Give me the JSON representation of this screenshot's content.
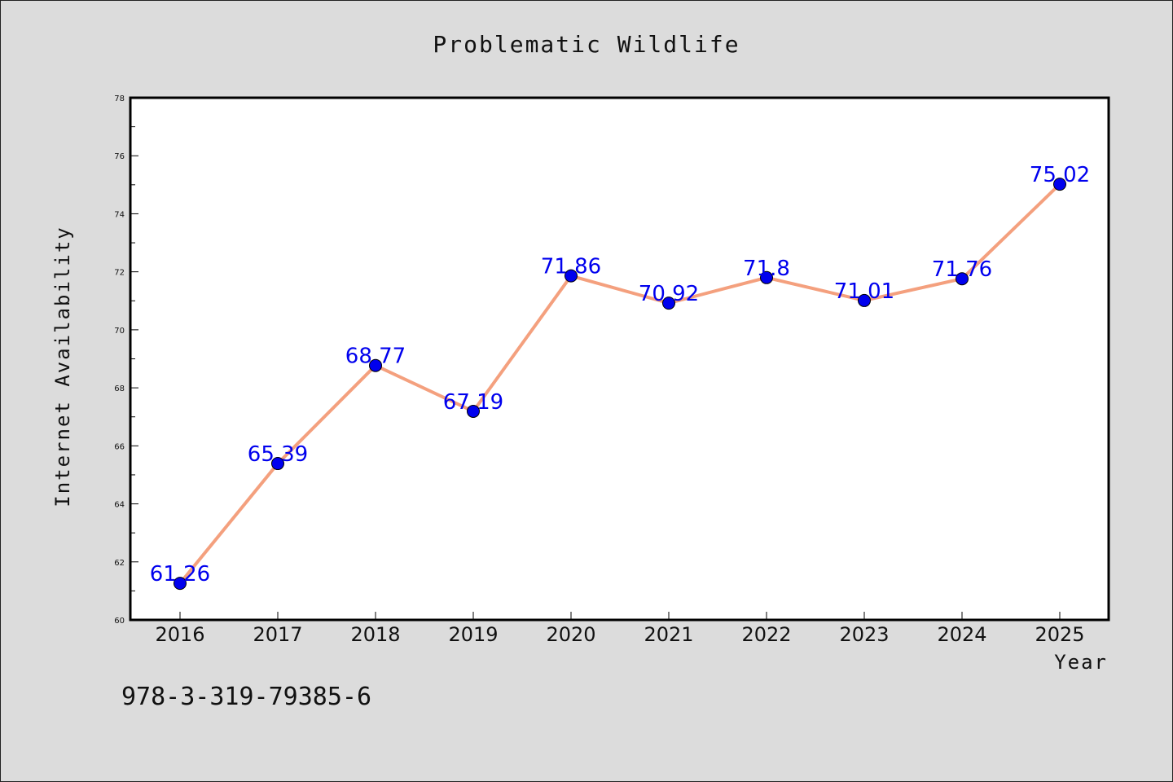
{
  "chart_data": {
    "type": "line",
    "title": "Problematic Wildlife",
    "xlabel": "Year",
    "ylabel": "Internet Availability",
    "categories": [
      "2016",
      "2017",
      "2018",
      "2019",
      "2020",
      "2021",
      "2022",
      "2023",
      "2024",
      "2025"
    ],
    "series": [
      {
        "values": [
          61.26,
          65.39,
          68.77,
          67.19,
          71.86,
          70.92,
          71.8,
          71.01,
          71.76,
          75.02
        ]
      }
    ],
    "data_labels": [
      "61.26",
      "65.39",
      "68.77",
      "67.19",
      "71.86",
      "70.92",
      "71.8",
      "71.01",
      "71.76",
      "75.02"
    ],
    "ylim": [
      60,
      78
    ],
    "yticks": [
      60,
      62,
      64,
      66,
      68,
      70,
      72,
      74,
      76,
      78
    ],
    "grid": false,
    "line_color": "#f4a07e",
    "marker_color": "#0000ee",
    "label_color": "#0000ee",
    "background": "#dcdcdc",
    "plot_background": "#ffffff"
  },
  "footer_text": "978-3-319-79385-6"
}
